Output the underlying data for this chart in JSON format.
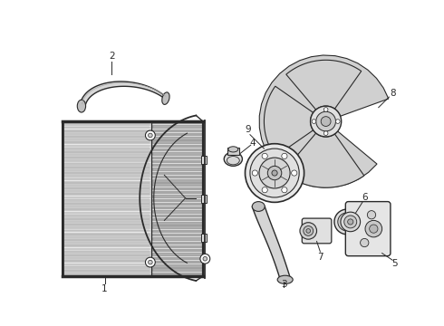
{
  "background_color": "#ffffff",
  "line_color": "#2a2a2a",
  "fig_width": 4.9,
  "fig_height": 3.6,
  "dpi": 100,
  "label_fontsize": 7.5
}
